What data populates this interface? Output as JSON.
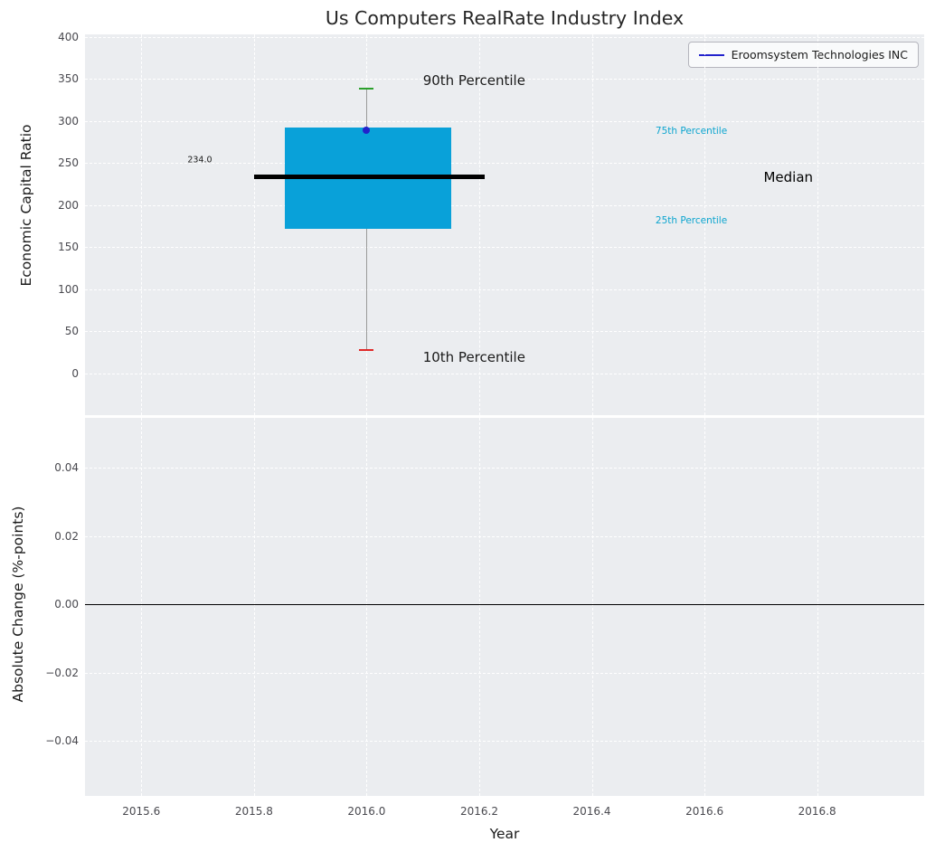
{
  "title": "Us Computers RealRate Industry Index",
  "colors": {
    "box_fill": "#09a1d9",
    "median_line": "#000000",
    "whisker": "#9a9a9a",
    "cap_top": "#2ca02c",
    "cap_bottom": "#e02828",
    "company_point": "#2222cc",
    "percentile_label": "#0da5cf",
    "axes_background": "#ebedf0",
    "grid": "#ffffff"
  },
  "chart_data": [
    {
      "type": "boxplot",
      "title": "Us Computers RealRate Industry Index",
      "xlabel": "",
      "ylabel": "Economic Capital Ratio",
      "xlim": [
        2015.5,
        2016.99
      ],
      "ylim": [
        -50,
        403
      ],
      "grid": true,
      "xticks": [
        2015.6,
        2015.8,
        2016.0,
        2016.2,
        2016.4,
        2016.6,
        2016.8
      ],
      "yticks": [
        400,
        350,
        300,
        250,
        200,
        150,
        100,
        50,
        0
      ],
      "ytick_labels": [
        "400",
        "350",
        "300",
        "250",
        "200",
        "150",
        "100",
        "50",
        "0"
      ],
      "legend": {
        "position": "upper right",
        "entries": [
          {
            "label": "Eroomsystem Technologies INC",
            "color": "#2222cc"
          }
        ]
      },
      "box": {
        "x": 2016.0,
        "p10": 28,
        "p25": 172,
        "median": 234,
        "p75": 292,
        "p90": 338,
        "box_x": [
          2015.855,
          2016.15
        ],
        "median_x": [
          2015.8,
          2016.21
        ],
        "median_value_label": "234.0"
      },
      "company_series": {
        "name": "Eroomsystem Technologies INC",
        "points": [
          {
            "x": 2016.0,
            "y": 289
          }
        ]
      },
      "annotations": [
        {
          "text": "90th Percentile",
          "x": 2016.1,
          "y": 348,
          "color": "#1a1a1a",
          "size": 15
        },
        {
          "text": "10th Percentile",
          "x": 2016.1,
          "y": 19,
          "color": "#1a1a1a",
          "size": 15
        },
        {
          "text": "75th Percentile",
          "x": 2016.513,
          "y": 288,
          "color": "#0da5cf",
          "size": 10.5
        },
        {
          "text": "25th Percentile",
          "x": 2016.513,
          "y": 181,
          "color": "#0da5cf",
          "size": 10.5
        },
        {
          "text": "Median",
          "x": 2016.705,
          "y": 233,
          "color": "#000000",
          "size": 15
        },
        {
          "text": "234.0",
          "x": 2015.682,
          "y": 253,
          "color": "#1a1a1a",
          "size": 9.5
        }
      ]
    },
    {
      "type": "line",
      "xlabel": "Year",
      "ylabel": "Absolute Change (%-points)",
      "xlim": [
        2015.5,
        2016.99
      ],
      "ylim": [
        -0.056,
        0.0545
      ],
      "grid": true,
      "xticks": [
        2015.6,
        2015.8,
        2016.0,
        2016.2,
        2016.4,
        2016.6,
        2016.8
      ],
      "xtick_labels": [
        "2015.6",
        "2015.8",
        "2016.0",
        "2016.2",
        "2016.4",
        "2016.6",
        "2016.8"
      ],
      "yticks": [
        0.04,
        0.02,
        0.0,
        -0.02,
        -0.04
      ],
      "ytick_labels": [
        "0.04",
        "0.02",
        "0.00",
        "−0.02",
        "−0.04"
      ],
      "zero_line": 0.0,
      "series": []
    }
  ]
}
